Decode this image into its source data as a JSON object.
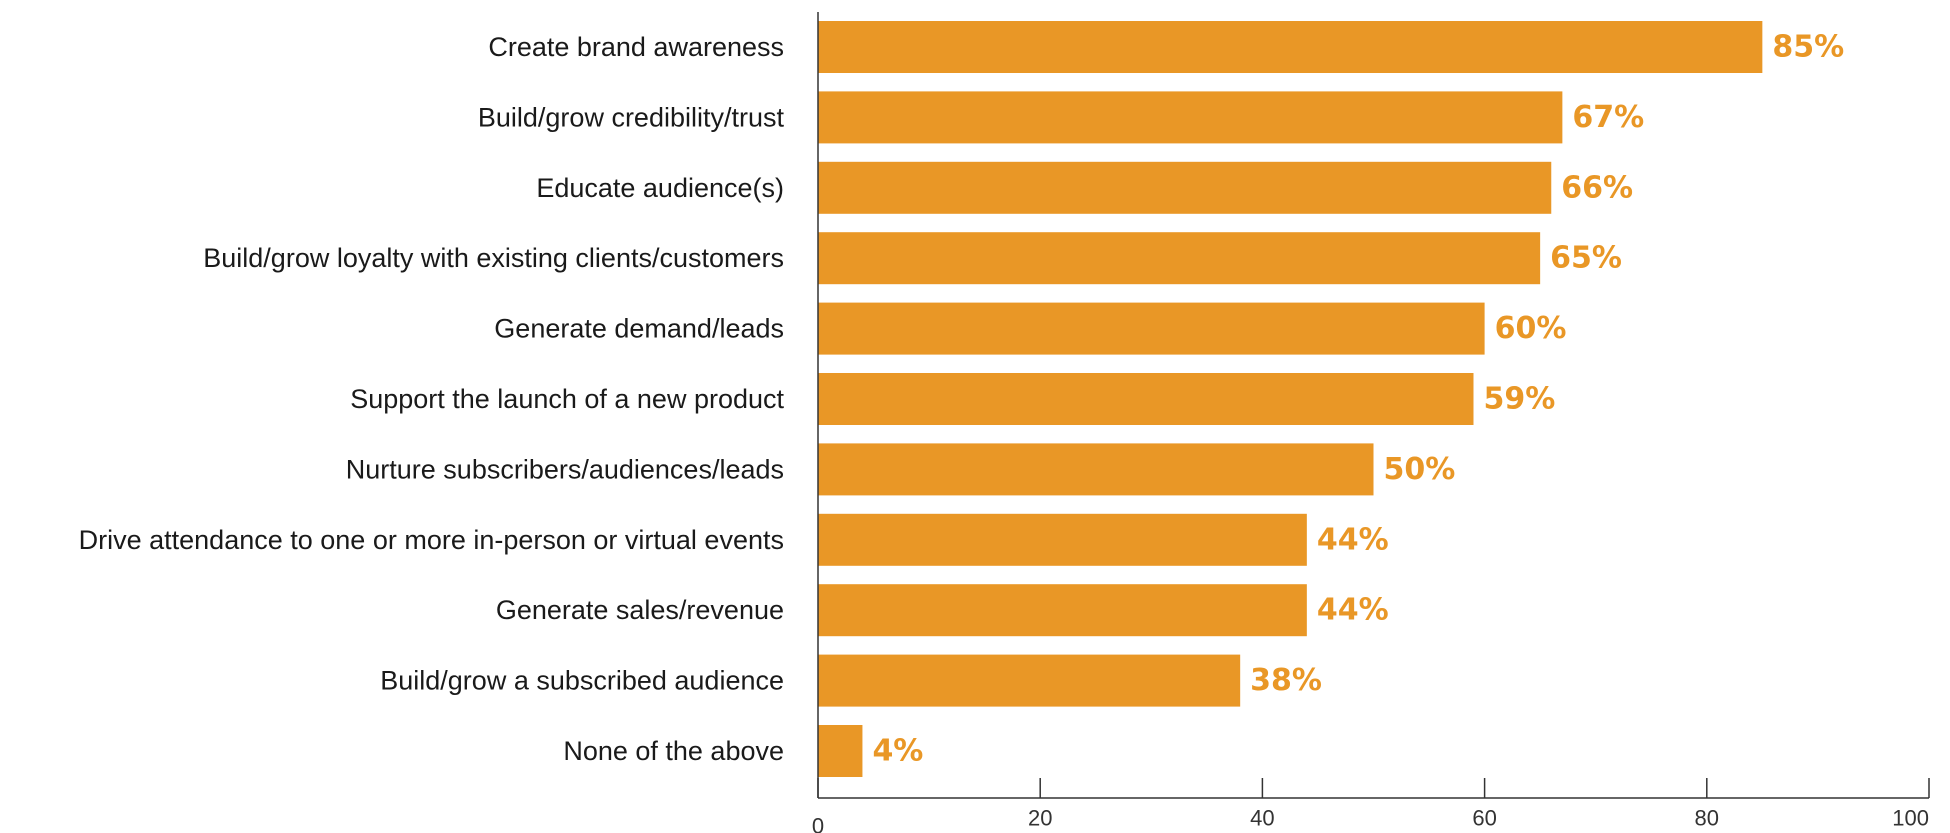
{
  "colors": {
    "bar": "#E99726",
    "value_label": "#E99726",
    "axis": "#333333"
  },
  "chart_data": {
    "type": "bar",
    "orientation": "horizontal",
    "categories": [
      "Create brand awareness",
      "Build/grow credibility/trust",
      "Educate audience(s)",
      "Build/grow loyalty with existing clients/customers",
      "Generate demand/leads",
      "Support the launch of a new product",
      "Nurture subscribers/audiences/leads",
      "Drive attendance to one or more in-person or virtual events",
      "Generate sales/revenue",
      "Build/grow a subscribed audience",
      "None of the above"
    ],
    "values": [
      85,
      67,
      66,
      65,
      60,
      59,
      50,
      44,
      44,
      38,
      4
    ],
    "value_labels": [
      "85%",
      "67%",
      "66%",
      "65%",
      "60%",
      "59%",
      "50%",
      "44%",
      "44%",
      "38%",
      "4%"
    ],
    "xlim": [
      0,
      100
    ],
    "x_ticks": [
      0,
      20,
      40,
      60,
      80,
      100
    ],
    "x_tick_labels": [
      "0",
      "20",
      "40",
      "60",
      "80",
      "100"
    ],
    "grid": false,
    "legend": "none"
  }
}
